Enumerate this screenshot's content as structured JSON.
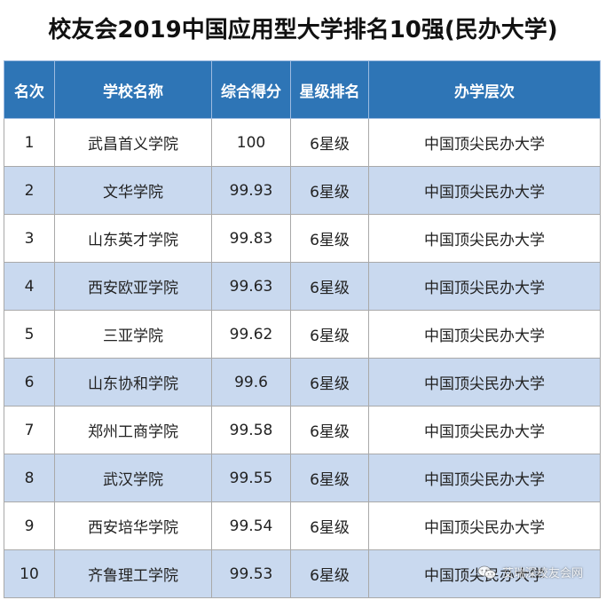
{
  "title": "校友会2019中国应用型大学排名10强(民办大学)",
  "headers": [
    "名次",
    "学校名称",
    "综合得分",
    "星级排名",
    "办学层次"
  ],
  "rows": [
    {
      "rank": "1",
      "name": "武昌首义学院",
      "score": "100",
      "stars": "6星级",
      "level": "中国顶尖民办大学"
    },
    {
      "rank": "2",
      "name": "文华学院",
      "score": "99.93",
      "stars": "6星级",
      "level": "中国顶尖民办大学"
    },
    {
      "rank": "3",
      "name": "山东英才学院",
      "score": "99.83",
      "stars": "6星级",
      "level": "中国顶尖民办大学"
    },
    {
      "rank": "4",
      "name": "西安欧亚学院",
      "score": "99.63",
      "stars": "6星级",
      "level": "中国顶尖民办大学"
    },
    {
      "rank": "5",
      "name": "三亚学院",
      "score": "99.62",
      "stars": "6星级",
      "level": "中国顶尖民办大学"
    },
    {
      "rank": "6",
      "name": "山东协和学院",
      "score": "99.6",
      "stars": "6星级",
      "level": "中国顶尖民办大学"
    },
    {
      "rank": "7",
      "name": "郑州工商学院",
      "score": "99.58",
      "stars": "6星级",
      "level": "中国顶尖民办大学"
    },
    {
      "rank": "8",
      "name": "武汉学院",
      "score": "99.55",
      "stars": "6星级",
      "level": "中国顶尖民办大学"
    },
    {
      "rank": "9",
      "name": "西安培华学院",
      "score": "99.54",
      "stars": "6星级",
      "level": "中国顶尖民办大学"
    },
    {
      "rank": "10",
      "name": "齐鲁理工学院",
      "score": "99.53",
      "stars": "6星级",
      "level": "中国顶尖民办大学"
    }
  ],
  "watermark": {
    "text": "艾瑞深校友会网",
    "icon": "wechat-icon"
  },
  "colors": {
    "header_bg": "#2e75b6",
    "stripe": "#c9d9ef",
    "header_text": "#ffffff"
  }
}
